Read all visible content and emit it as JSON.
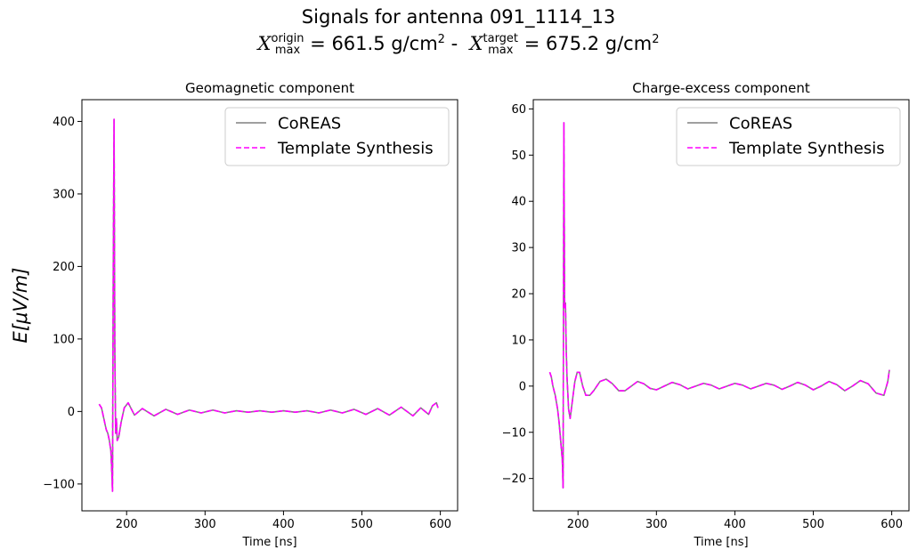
{
  "figure": {
    "title_line1": "Signals for antenna 091_1114_13",
    "title_line2": {
      "x_symbol": "X",
      "origin_sup": "origin",
      "origin_sub": "max",
      "origin_eq": " =  661.5 g/cm",
      "unit_exp": "2",
      "separator": " -  ",
      "target_sup": "target",
      "target_sub": "max",
      "target_eq": " =  675.2 g/cm"
    },
    "shared_ylabel": "E[μV/m]"
  },
  "colors": {
    "coreas": "#808080",
    "template": "#ff00ff"
  },
  "chart_data": [
    {
      "type": "line",
      "title": "Geomagnetic component",
      "xlabel": "Time [ns]",
      "ylabel": "E[μV/m]",
      "xlim": [
        143,
        622
      ],
      "ylim": [
        -137,
        430
      ],
      "xticks": [
        200,
        300,
        400,
        500,
        600
      ],
      "yticks": [
        -100,
        0,
        100,
        200,
        300,
        400
      ],
      "legend_position": "upper right",
      "series": [
        {
          "name": "CoREAS",
          "style": "solid",
          "color": "#808080",
          "x": [
            165,
            168,
            171,
            174,
            176,
            178,
            180,
            181,
            182,
            183,
            184,
            185,
            186,
            187,
            188,
            190,
            193,
            197,
            202,
            210,
            220,
            235,
            250,
            265,
            280,
            295,
            310,
            325,
            340,
            355,
            370,
            385,
            400,
            415,
            430,
            445,
            460,
            475,
            490,
            505,
            520,
            535,
            550,
            565,
            575,
            585,
            590,
            595,
            597
          ],
          "y": [
            10,
            5,
            -10,
            -25,
            -30,
            -40,
            -55,
            -80,
            -110,
            200,
            403,
            80,
            -30,
            -10,
            -40,
            -35,
            -15,
            5,
            12,
            -5,
            4,
            -6,
            3,
            -4,
            2,
            -2,
            2,
            -2,
            1,
            -1,
            1,
            -1,
            1,
            -1,
            1,
            -2,
            2,
            -2,
            3,
            -4,
            4,
            -5,
            6,
            -6,
            5,
            -4,
            8,
            12,
            5
          ]
        },
        {
          "name": "Template Synthesis",
          "style": "dashed",
          "color": "#ff00ff",
          "x": [
            165,
            168,
            171,
            174,
            176,
            178,
            180,
            181,
            182,
            183,
            184,
            185,
            186,
            187,
            188,
            190,
            193,
            197,
            202,
            210,
            220,
            235,
            250,
            265,
            280,
            295,
            310,
            325,
            340,
            355,
            370,
            385,
            400,
            415,
            430,
            445,
            460,
            475,
            490,
            505,
            520,
            535,
            550,
            565,
            575,
            585,
            590,
            595,
            597
          ],
          "y": [
            10,
            5,
            -10,
            -25,
            -30,
            -40,
            -55,
            -80,
            -110,
            200,
            403,
            80,
            -30,
            -10,
            -40,
            -35,
            -15,
            5,
            12,
            -5,
            4,
            -6,
            3,
            -4,
            2,
            -2,
            2,
            -2,
            1,
            -1,
            1,
            -1,
            1,
            -1,
            1,
            -2,
            2,
            -2,
            3,
            -4,
            4,
            -5,
            6,
            -6,
            5,
            -4,
            8,
            12,
            5
          ]
        }
      ]
    },
    {
      "type": "line",
      "title": "Charge-excess component",
      "xlabel": "Time [ns]",
      "ylabel": "",
      "xlim": [
        143,
        622
      ],
      "ylim": [
        -27,
        62
      ],
      "xticks": [
        200,
        300,
        400,
        500,
        600
      ],
      "yticks": [
        -20,
        -10,
        0,
        10,
        20,
        30,
        40,
        50,
        60
      ],
      "legend_position": "upper right",
      "series": [
        {
          "name": "CoREAS",
          "style": "solid",
          "color": "#808080",
          "x": [
            164,
            166,
            168,
            171,
            174,
            176,
            178,
            180,
            181,
            182,
            183,
            184,
            185,
            186,
            188,
            190,
            193,
            196,
            199,
            202,
            206,
            210,
            215,
            220,
            228,
            236,
            244,
            252,
            260,
            268,
            276,
            284,
            292,
            300,
            310,
            320,
            330,
            340,
            350,
            360,
            370,
            380,
            390,
            400,
            410,
            420,
            430,
            440,
            450,
            460,
            470,
            480,
            490,
            500,
            510,
            520,
            530,
            540,
            550,
            560,
            570,
            580,
            590,
            595,
            597
          ],
          "y": [
            3,
            2,
            0,
            -2,
            -5,
            -8,
            -12,
            -16,
            -22,
            57,
            17,
            18,
            8,
            2,
            -5,
            -7,
            -3,
            1,
            3,
            3,
            0,
            -2,
            -2,
            -1,
            1,
            1.5,
            0.5,
            -1,
            -1,
            0,
            1,
            0.5,
            -0.5,
            -0.8,
            0,
            0.8,
            0.3,
            -0.6,
            0,
            0.6,
            0.2,
            -0.6,
            0,
            0.6,
            0.2,
            -0.6,
            0,
            0.6,
            0.2,
            -0.7,
            0,
            0.8,
            0.2,
            -0.8,
            0,
            1,
            0.3,
            -1,
            0,
            1.2,
            0.5,
            -1.5,
            -2,
            1,
            3.5
          ]
        },
        {
          "name": "Template Synthesis",
          "style": "dashed",
          "color": "#ff00ff",
          "x": [
            164,
            166,
            168,
            171,
            174,
            176,
            178,
            180,
            181,
            182,
            183,
            184,
            185,
            186,
            188,
            190,
            193,
            196,
            199,
            202,
            206,
            210,
            215,
            220,
            228,
            236,
            244,
            252,
            260,
            268,
            276,
            284,
            292,
            300,
            310,
            320,
            330,
            340,
            350,
            360,
            370,
            380,
            390,
            400,
            410,
            420,
            430,
            440,
            450,
            460,
            470,
            480,
            490,
            500,
            510,
            520,
            530,
            540,
            550,
            560,
            570,
            580,
            590,
            595,
            597
          ],
          "y": [
            3,
            2,
            0,
            -2,
            -5,
            -8,
            -12,
            -16,
            -22,
            57,
            17,
            18,
            8,
            2,
            -5,
            -7,
            -3,
            1,
            3,
            3,
            0,
            -2,
            -2,
            -1,
            1,
            1.5,
            0.5,
            -1,
            -1,
            0,
            1,
            0.5,
            -0.5,
            -0.8,
            0,
            0.8,
            0.3,
            -0.6,
            0,
            0.6,
            0.2,
            -0.6,
            0,
            0.6,
            0.2,
            -0.6,
            0,
            0.6,
            0.2,
            -0.7,
            0,
            0.8,
            0.2,
            -0.8,
            0,
            1,
            0.3,
            -1,
            0,
            1.2,
            0.5,
            -1.5,
            -2,
            1,
            3.5
          ]
        }
      ]
    }
  ]
}
